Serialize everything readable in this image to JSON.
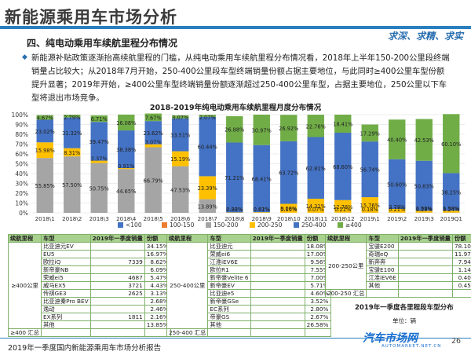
{
  "header": {
    "title": "新能源乘用车市场分析",
    "slogan": "求深、求精、求实",
    "section": "四、纯电动乘用车续航里程分布情况"
  },
  "summary": {
    "bullet": "◆",
    "text": "新能源补贴政策逐渐抬高续航里程的门槛，从纯电动乘用车续航里程分布情况看，2018年上半年150-200公里段终端销量占比较大；从2018年7月开始，250-400公里段车型终端销量份额占据主要地位，与此同时≥400公里车型份额提升显著；2019年开始，≥400公里车型终端销量份额逐渐超过250-400公里车型，占据主要地位，250公里以下车型将退出市场竞争。"
  },
  "chart_data": {
    "type": "bar",
    "stacked": true,
    "title": "2018-2019年纯电动乘用车续航里程月度分布情况",
    "ylim": [
      0,
      100
    ],
    "yticks": [
      "0%",
      "10%",
      "20%",
      "30%",
      "40%",
      "50%",
      "60%",
      "70%",
      "80%",
      "90%",
      "100%"
    ],
    "grid": true,
    "legend_position": "bottom",
    "categories": [
      "2018\\1",
      "2018\\2",
      "2018\\3",
      "2018\\4",
      "2018\\5",
      "2018\\6",
      "2018\\7",
      "2018\\8",
      "2018\\9",
      "2018\\10",
      "2018\\11",
      "2018\\12",
      "2019\\1",
      "2019\\2",
      "2019\\3",
      "2019Q1"
    ],
    "series": [
      {
        "name": "<100",
        "color": "#4472c4",
        "values": [
          0,
          0,
          0,
          0,
          0,
          0,
          0,
          0,
          0,
          0,
          0,
          0,
          0,
          0,
          0,
          0
        ]
      },
      {
        "name": "100-150",
        "color": "#ed7d31",
        "values": [
          0,
          0,
          0,
          0,
          0,
          0,
          0,
          0,
          0,
          0,
          0,
          0,
          0,
          0,
          0,
          0
        ]
      },
      {
        "name": "150-200",
        "color": "#a5a5a5",
        "values": [
          55.85,
          57.5,
          50.75,
          44.65,
          66.79,
          47.53,
          13.89,
          0.08,
          0.01,
          0.1,
          0.07,
          0.21,
          0.18,
          0.21,
          0.23,
          0.24
        ]
      },
      {
        "name": "200-250",
        "color": "#ffc000",
        "values": [
          15.98,
          8.31,
          2.37,
          0.91,
          3.07,
          15.19,
          23.39,
          0.33,
          0.62,
          9.08,
          14.31,
          12.78,
          15.76,
          3.79,
          1.98,
          1.98
        ]
      },
      {
        "name": "250-400",
        "color": "#4472c4",
        "values": [
          23.02,
          31.32,
          39.47,
          38.38,
          23.62,
          33.51,
          60.44,
          71.21,
          68.41,
          63.72,
          62.81,
          68.6,
          56.74,
          50.6,
          50.83,
          38.25
        ]
      },
      {
        "name": "≥400",
        "color": "#70ad47",
        "values": [
          4.67,
          2.79,
          6.71,
          16.08,
          7.67,
          3.07,
          2.07,
          26.88,
          30.97,
          26.92,
          22.76,
          18.41,
          17.29,
          40.4,
          42.53,
          60.1
        ]
      }
    ],
    "label_values": [
      [
        "23.02%",
        "4.67%",
        "15.98%",
        "55.85%"
      ],
      [
        "31.32%",
        "2.79%",
        "8.31%",
        "57.50%"
      ],
      [
        "39.47%",
        "6.71%",
        "2.37%",
        "50.75%"
      ],
      [
        "38.38%",
        "16.08%",
        "0.91%",
        "44.65%"
      ],
      [
        "23.62%",
        "7.67%",
        "3.07%",
        "66.79%"
      ],
      [
        "33.51%",
        "3.07%",
        "15.19%",
        "47.53%"
      ],
      [
        "60.44%",
        "2.07%",
        "23.39%",
        "13.89%"
      ],
      [
        "71.21%",
        "26.88%",
        "0.33%",
        "0.08%"
      ],
      [
        "68.41%",
        "30.97%",
        "0.62%",
        "0.01%"
      ],
      [
        "63.72%",
        "26.92%",
        "9.08%",
        "0.10%"
      ],
      [
        "62.81%",
        "22.76%",
        "14.31%",
        "0.07%"
      ],
      [
        "68.60%",
        "18.41%",
        "12.78%",
        "0.21%"
      ],
      [
        "56.74%",
        "17.29%",
        "15.76%",
        "0.18%"
      ],
      [
        "50.60%",
        "40.40%",
        "3.79%",
        "0.21%"
      ],
      [
        "50.83%",
        "42.53%",
        "1.98%",
        "0.23%"
      ],
      [
        "38.25%",
        "60.10%",
        "1.98%",
        "0.24%"
      ]
    ]
  },
  "table": {
    "caption": "2019年一季度各里程段车型分布",
    "unit": "单位：辆",
    "headers": [
      "续航里程",
      "车型",
      "2019年一季度销量",
      "份额"
    ],
    "blocks": [
      {
        "group": "≥400公里",
        "rows": [
          [
            "比亚迪元EV",
            "",
            "34.15%"
          ],
          [
            "EU5",
            "",
            "16.97%"
          ],
          [
            "欧拉iQ",
            "7339",
            "8.62%"
          ],
          [
            "新帝豪NB",
            "",
            "6.09%"
          ],
          [
            "荣威ei5",
            "4687",
            "5.47%"
          ],
          [
            "威马EX5",
            "3721",
            "4.43%"
          ],
          [
            "传祺GE3",
            "2625",
            "3.13%"
          ],
          [
            "比亚迪秦Pro BEV",
            "",
            "2.68%"
          ],
          [
            "逸动",
            "",
            "2.46%"
          ],
          [
            "EX系列",
            "1811",
            "2.16%"
          ],
          [
            "其他",
            "",
            "13.85%"
          ]
        ],
        "total_label": "≥400 汇总"
      },
      {
        "group": "250-400公里",
        "rows": [
          [
            "比亚迪元",
            "",
            "18.08%"
          ],
          [
            "荣威ei6",
            "",
            "17.00%"
          ],
          [
            "江淮iEV6E",
            "",
            "9.56%"
          ],
          [
            "欧拉R1",
            "",
            "7.55%"
          ],
          [
            "新帝豪Velite 6",
            "",
            "7.00%"
          ],
          [
            "新帝豪EV",
            "",
            "5.71%"
          ],
          [
            "比亚迪e5",
            "",
            "4.60%"
          ],
          [
            "新帝豪GSe",
            "",
            "3.52%"
          ],
          [
            "EC系列",
            "",
            "2.80%"
          ],
          [
            "帝豪GS",
            "",
            "2.67%"
          ],
          [
            "其他",
            "",
            "26.58%"
          ]
        ],
        "total_label": "250-400 汇总"
      },
      {
        "group": "200-250公里",
        "rows": [
          [
            "宝骏E200",
            "",
            "78.10%"
          ],
          [
            "奇瑞eQ",
            "",
            "11.97%"
          ],
          [
            "新奔奔",
            "",
            "7.94%"
          ],
          [
            "宝骏E100",
            "",
            "1.14%"
          ],
          [
            "江淮iEV6E",
            "",
            "0.40%"
          ],
          [
            "其他",
            "",
            "0.45%"
          ]
        ],
        "total_label": "200-250 汇总"
      }
    ]
  },
  "footer": {
    "text": "2019年一季度国内新能源乘用车市场分析报告",
    "page": "26",
    "logo": "汽车市场网",
    "logo_sub": "AUTOMARKET.NET.CN"
  }
}
